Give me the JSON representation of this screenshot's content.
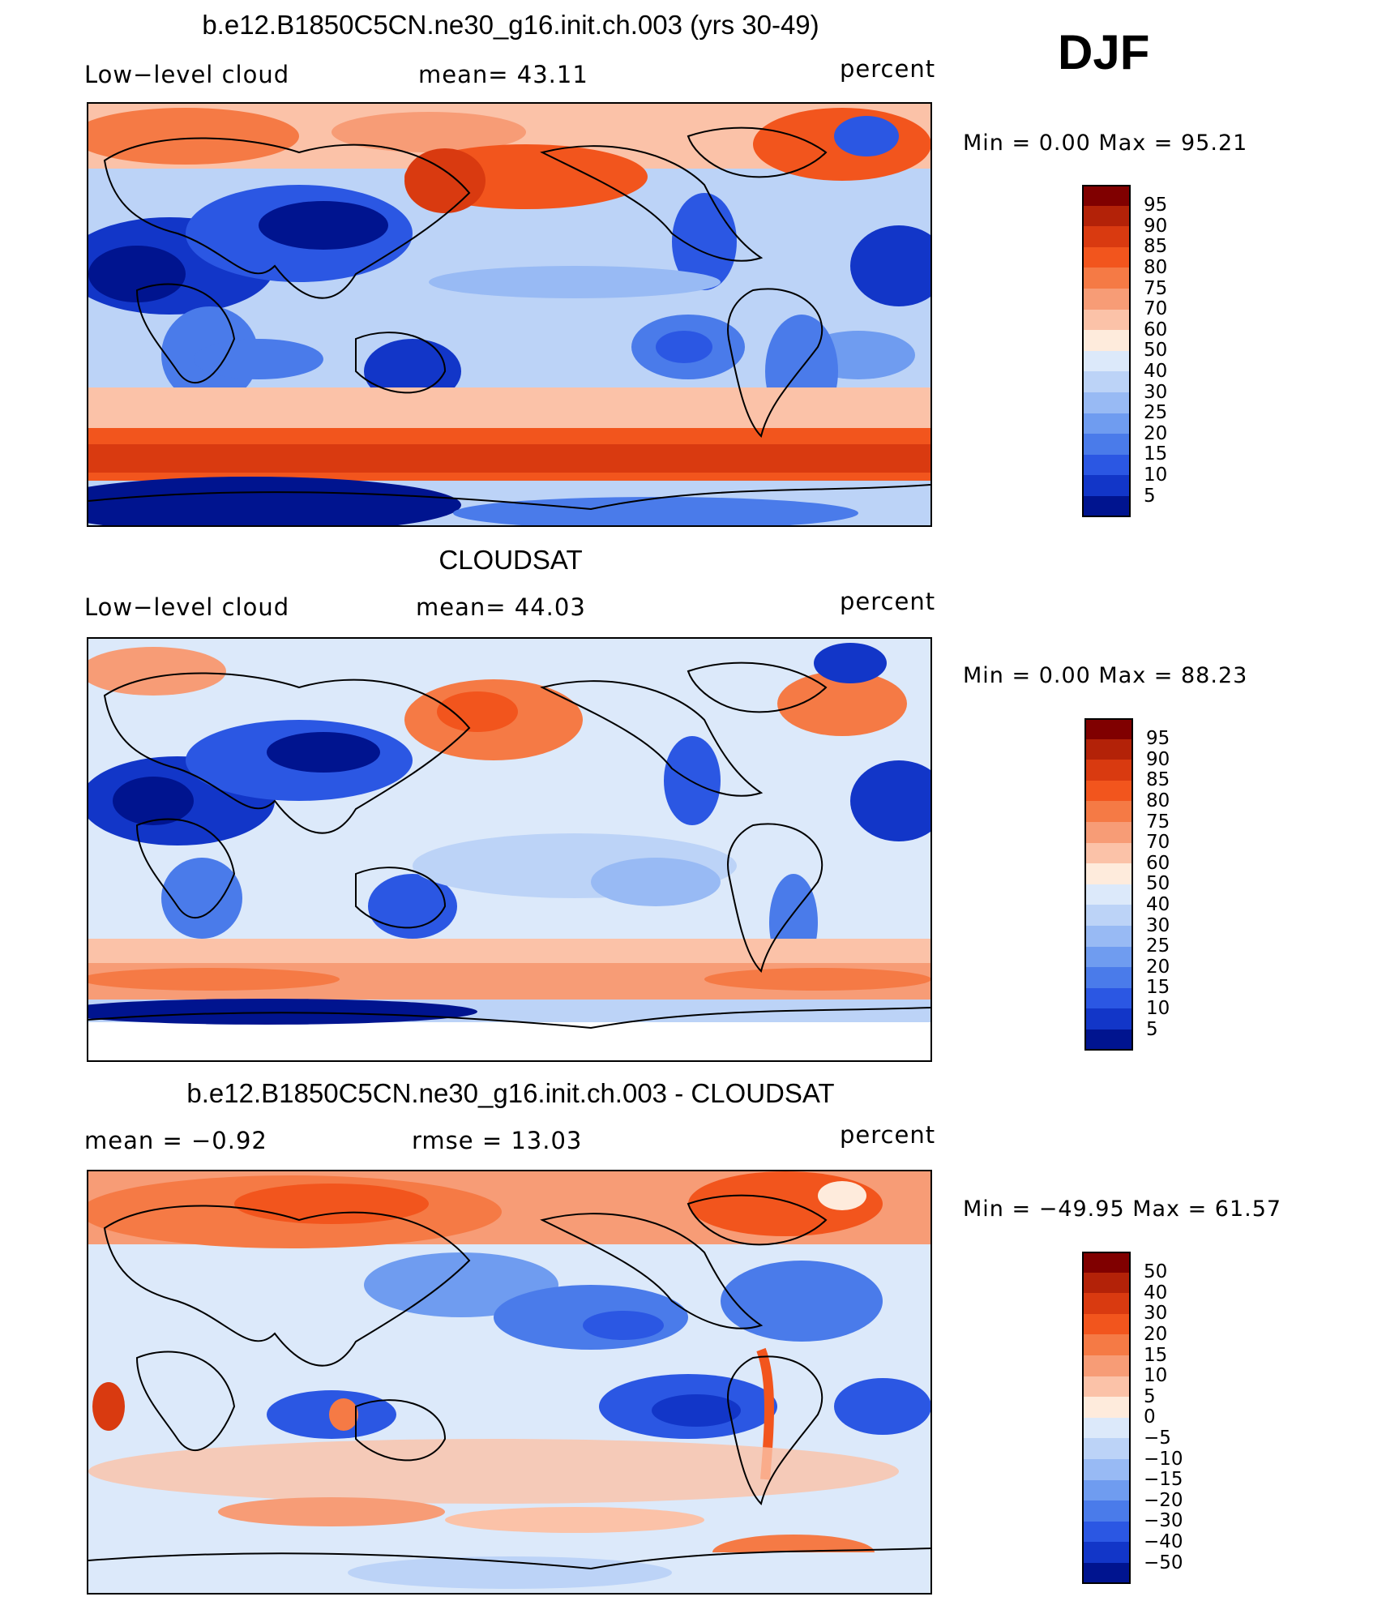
{
  "season": "DJF",
  "panels": [
    {
      "title": "b.e12.B1850C5CN.ne30_g16.init.ch.003 (yrs 30-49)",
      "left_label": "Low−level cloud",
      "center_label": "mean=   43.11",
      "right_label": "percent",
      "minmax": "Min =     0.00  Max =    95.21",
      "colorbar": {
        "labels": [
          "95",
          "90",
          "85",
          "80",
          "75",
          "70",
          "60",
          "50",
          "40",
          "30",
          "25",
          "20",
          "15",
          "10",
          "5"
        ],
        "colors": [
          "#800000",
          "#b32208",
          "#d93a10",
          "#f2551d",
          "#f57a45",
          "#f79c76",
          "#fbc2a8",
          "#feebdc",
          "#dce9fa",
          "#bcd3f7",
          "#98baf4",
          "#6f9cf0",
          "#4a7bea",
          "#2b57e3",
          "#1236c8",
          "#00148f"
        ]
      }
    },
    {
      "title": "CLOUDSAT",
      "left_label": "Low−level cloud",
      "center_label": "mean=   44.03",
      "right_label": "percent",
      "minmax": "Min =     0.00  Max =    88.23",
      "colorbar": {
        "labels": [
          "95",
          "90",
          "85",
          "80",
          "75",
          "70",
          "60",
          "50",
          "40",
          "30",
          "25",
          "20",
          "15",
          "10",
          "5"
        ],
        "colors": [
          "#800000",
          "#b32208",
          "#d93a10",
          "#f2551d",
          "#f57a45",
          "#f79c76",
          "#fbc2a8",
          "#feebdc",
          "#dce9fa",
          "#bcd3f7",
          "#98baf4",
          "#6f9cf0",
          "#4a7bea",
          "#2b57e3",
          "#1236c8",
          "#00148f"
        ]
      }
    },
    {
      "title": "b.e12.B1850C5CN.ne30_g16.init.ch.003 - CLOUDSAT",
      "left_label": "mean =    −0.92",
      "center_label": "rmse =    13.03",
      "right_label": "percent",
      "minmax": "Min =  −49.95  Max =    61.57",
      "colorbar": {
        "labels": [
          "50",
          "40",
          "30",
          "20",
          "15",
          "10",
          "5",
          "0",
          "−5",
          "−10",
          "−15",
          "−20",
          "−30",
          "−40",
          "−50"
        ],
        "colors": [
          "#800000",
          "#b32208",
          "#d93a10",
          "#f2551d",
          "#f57a45",
          "#f79c76",
          "#fbc2a8",
          "#feebdc",
          "#dce9fa",
          "#bcd3f7",
          "#98baf4",
          "#6f9cf0",
          "#4a7bea",
          "#2b57e3",
          "#1236c8",
          "#00148f"
        ]
      }
    }
  ]
}
